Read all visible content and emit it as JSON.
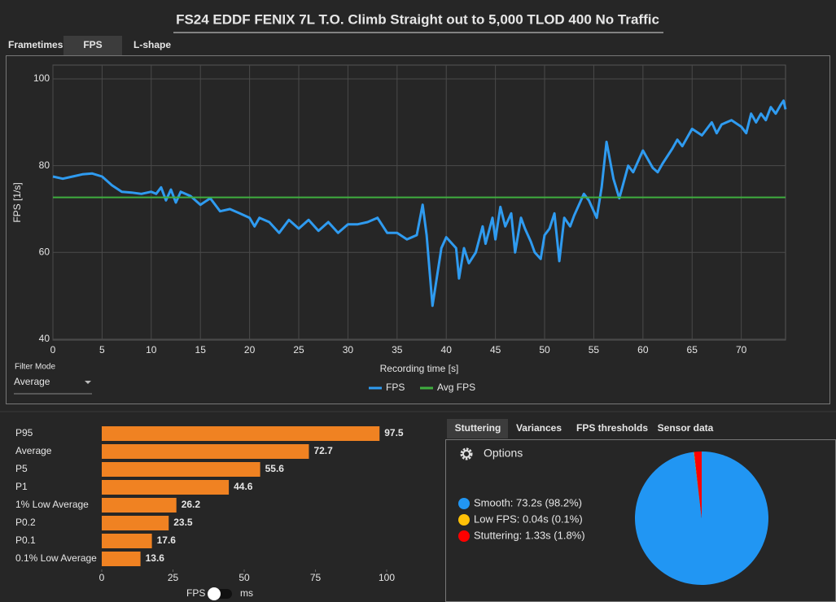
{
  "title": "FS24 EDDF FENIX 7L T.O. Climb Straight out to 5,000 TLOD 400 No Traffic",
  "tabs": [
    "Frametimes",
    "FPS",
    "L-shape"
  ],
  "filter_mode": {
    "label": "Filter Mode",
    "value": "Average"
  },
  "stats_tabs": [
    "Stuttering",
    "Variances",
    "FPS thresholds",
    "Sensor data"
  ],
  "options": "Options",
  "toggle": {
    "left": "FPS",
    "right": "ms"
  },
  "chart_data": [
    {
      "type": "line",
      "xlabel": "Recording time [s]",
      "ylabel": "FPS [1/s]",
      "xlim": [
        0,
        74.5
      ],
      "ylim": [
        39.8,
        103.2
      ],
      "xticks": [
        0,
        5,
        10,
        15,
        20,
        25,
        30,
        35,
        40,
        45,
        50,
        55,
        60,
        65,
        70
      ],
      "yticks": [
        40,
        60,
        80,
        100
      ],
      "grid": true,
      "legend": "bottom",
      "series": [
        {
          "name": "FPS",
          "color": "#2f9bf0",
          "x": [
            0,
            1,
            2,
            3,
            4,
            5,
            6,
            7,
            8,
            9,
            10,
            10.5,
            11,
            11.5,
            12,
            12.5,
            13,
            14,
            15,
            16,
            17,
            18,
            19,
            20,
            20.5,
            21,
            22,
            23,
            24,
            25,
            26,
            27,
            28,
            29,
            30,
            31,
            32,
            33,
            34,
            35,
            36,
            37,
            37.6,
            38,
            38.6,
            39.5,
            40,
            41,
            41.3,
            41.8,
            42.3,
            43,
            43.7,
            44,
            44.7,
            45,
            45.5,
            46,
            46.6,
            47,
            47.6,
            48,
            48.6,
            49,
            49.6,
            50,
            50.5,
            51,
            51.5,
            52,
            52.6,
            53,
            54,
            54.5,
            55.3,
            55.8,
            56.3,
            57,
            57.6,
            58.5,
            59,
            60,
            61,
            61.5,
            62,
            63,
            63.5,
            64,
            65,
            66,
            67,
            67.5,
            68,
            69,
            70,
            70.5,
            71,
            71.5,
            72,
            72.5,
            73,
            73.5,
            74,
            74.3,
            74.5
          ],
          "values": [
            77.5,
            77,
            77.5,
            78,
            78.2,
            77.5,
            75.5,
            74,
            73.8,
            73.5,
            74,
            73.5,
            75,
            72,
            74.5,
            71.5,
            74,
            73,
            71,
            72.5,
            69.5,
            70,
            69,
            68,
            66,
            68,
            67,
            64.5,
            67.5,
            65.5,
            67.5,
            65,
            67,
            64.5,
            66.5,
            66.5,
            67,
            68,
            64.5,
            64.5,
            63,
            64,
            71,
            64,
            47.7,
            61,
            63.5,
            61,
            54,
            61,
            57.5,
            60,
            66,
            62,
            68,
            63,
            70.5,
            66,
            69,
            60,
            68,
            65.5,
            62.5,
            60,
            58.5,
            64,
            65.5,
            69,
            58,
            68,
            66,
            68.5,
            73.5,
            72,
            68,
            75,
            85.5,
            77,
            72.5,
            80,
            78.5,
            83.5,
            79.5,
            78.5,
            80.5,
            84,
            86,
            84.5,
            88.5,
            87,
            90,
            87.5,
            89.5,
            90.5,
            89,
            87.5,
            92,
            90,
            92,
            90.5,
            93.5,
            92,
            94,
            95,
            93
          ]
        },
        {
          "name": "Avg FPS",
          "color": "#3fae3f",
          "x": [
            0,
            74.5
          ],
          "values": [
            72.7,
            72.7
          ]
        }
      ]
    },
    {
      "type": "bar",
      "orientation": "horizontal",
      "color": "#f08222",
      "categories": [
        "P95",
        "Average",
        "P5",
        "P1",
        "1% Low Average",
        "P0.2",
        "P0.1",
        "0.1% Low Average"
      ],
      "values": [
        97.5,
        72.7,
        55.6,
        44.6,
        26.2,
        23.5,
        17.6,
        13.6
      ],
      "xlim": [
        0,
        100
      ],
      "xticks": [
        0,
        25,
        50,
        75,
        100
      ]
    },
    {
      "type": "pie",
      "labels": [
        "Smooth:  73.2s (98.2%)",
        "Low FPS:  0.04s (0.1%)",
        "Stuttering:  1.33s (1.8%)"
      ],
      "values": [
        98.2,
        0.1,
        1.8
      ],
      "colors": [
        "#2196f3",
        "#ffc107",
        "#ff0000"
      ]
    }
  ]
}
